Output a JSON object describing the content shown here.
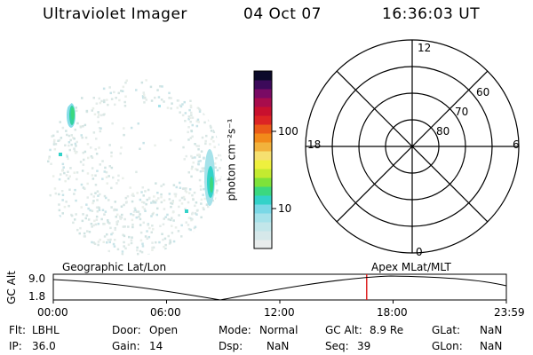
{
  "header": {
    "instrument": "Ultraviolet Imager",
    "date": "04 Oct 07",
    "time": "16:36:03 UT"
  },
  "colorbar": {
    "unit_label": "photon cm⁻²s⁻¹",
    "ticks": [
      {
        "label": "100",
        "value": 100
      },
      {
        "label": "10",
        "value": 10
      }
    ],
    "colors": [
      "#e8ecec",
      "#d6e8ea",
      "#c2e6ea",
      "#a6e2ea",
      "#7ad8e6",
      "#33d2c9",
      "#3bd87f",
      "#7ee23a",
      "#c3ea30",
      "#eef03e",
      "#f6e070",
      "#f2b23c",
      "#f28a1a",
      "#ea5a18",
      "#dc2424",
      "#c8102e",
      "#a80c4c",
      "#7a0a64",
      "#3c0a5a",
      "#0c0a2a"
    ]
  },
  "polar_plot": {
    "mlt_labels": {
      "top": "12",
      "left": "18",
      "right": "6",
      "bottom": "0"
    },
    "lat_labels": [
      "60",
      "70",
      "80"
    ]
  },
  "timeline": {
    "left_label": "Geographic Lat/Lon",
    "right_label": "Apex  MLat/MLT",
    "y_axis_label": "GC Alt",
    "y_max": "9.0",
    "y_min": "1.8",
    "x_ticks": [
      "00:00",
      "06:00",
      "12:00",
      "18:00",
      "23:59"
    ],
    "current_time_fraction": 0.6917
  },
  "status": {
    "flt": {
      "label": "Flt:",
      "value": "LBHL"
    },
    "ip": {
      "label": "IP:",
      "value": "36.0"
    },
    "door": {
      "label": "Door:",
      "value": "Open"
    },
    "gain": {
      "label": "Gain:",
      "value": "14"
    },
    "mode": {
      "label": "Mode:",
      "value": "Normal"
    },
    "dsp": {
      "label": "Dsp:",
      "value": "NaN"
    },
    "gc_alt": {
      "label": "GC Alt:",
      "value": "8.9 Re"
    },
    "seq": {
      "label": "Seq:",
      "value": "39"
    },
    "glat": {
      "label": "GLat:",
      "value": "NaN"
    },
    "glon": {
      "label": "GLon:",
      "value": "NaN"
    }
  },
  "colors": {
    "cursor_line": "#dd2222"
  }
}
